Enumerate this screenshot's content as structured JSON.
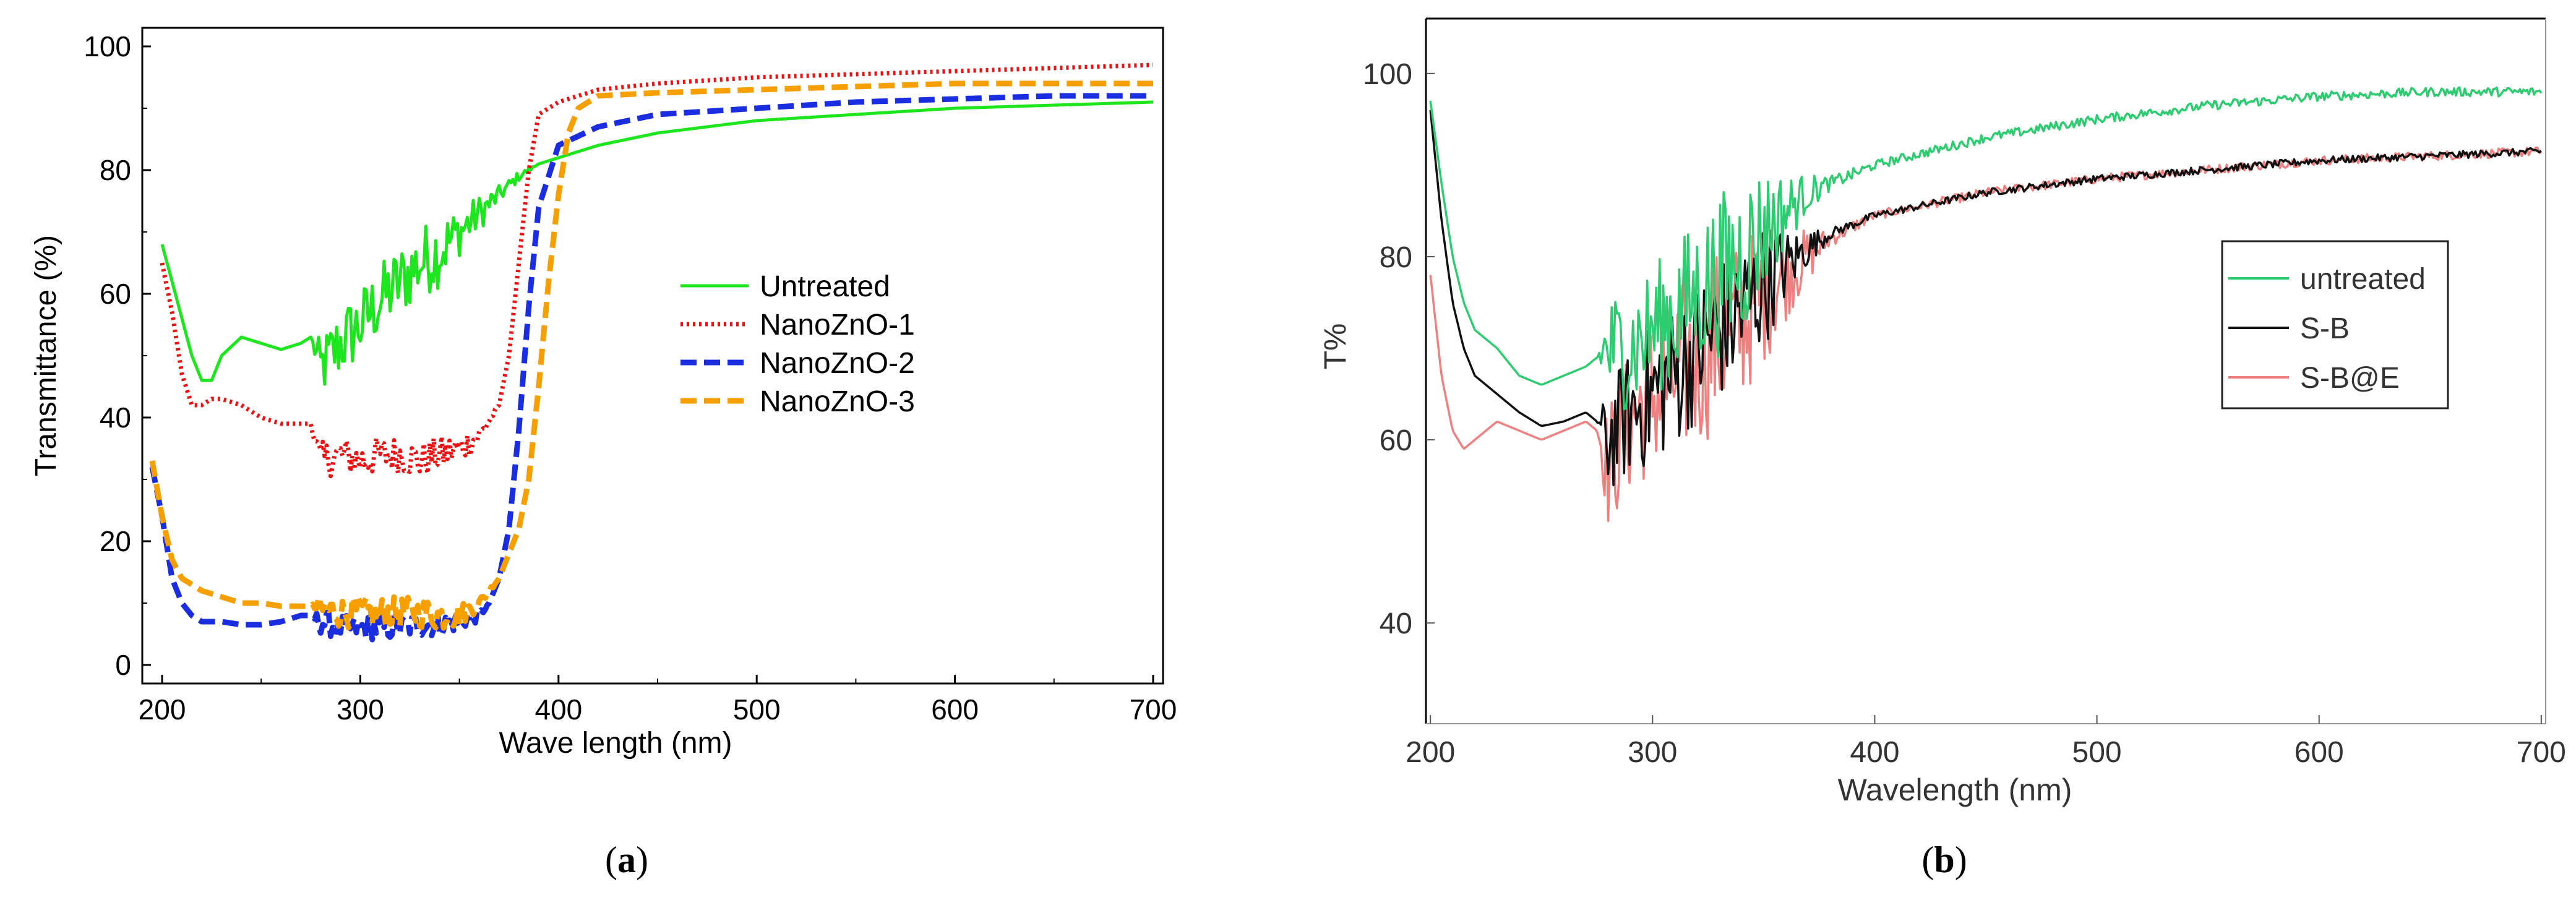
{
  "colors": {
    "untreated_a": "#1ee61e",
    "nano1": "#ee1111",
    "nano2": "#1a2ee0",
    "nano3": "#f5a000",
    "untreated_b": "#2ecc71",
    "sb": "#111111",
    "sbe": "#f08080"
  },
  "panels": {
    "a": {
      "caption_open": "(",
      "caption_letter": "a",
      "caption_close": ")"
    },
    "b": {
      "caption_open": "(",
      "caption_letter": "b",
      "caption_close": ")"
    }
  },
  "chart_data": [
    {
      "id": "a",
      "type": "line",
      "xlabel": "Wave length (nm)",
      "ylabel": "Transmittance (%)",
      "xlim": [
        190,
        705
      ],
      "ylim": [
        -3,
        103
      ],
      "xticks": [
        200,
        300,
        400,
        500,
        600,
        700
      ],
      "yticks": [
        0,
        20,
        40,
        60,
        80,
        100
      ],
      "grid": false,
      "legend_position": "center-right",
      "series": [
        {
          "name": "Untreated",
          "style": "solid",
          "x": [
            200,
            205,
            210,
            215,
            220,
            225,
            230,
            240,
            250,
            260,
            270,
            275,
            280,
            290,
            300,
            310,
            320,
            330,
            340,
            350,
            360,
            370,
            380,
            390,
            400,
            420,
            450,
            500,
            550,
            600,
            650,
            700
          ],
          "y": [
            68,
            62,
            56,
            50,
            46,
            46,
            50,
            53,
            52,
            51,
            52,
            53,
            48,
            52,
            55,
            59,
            62,
            65,
            67,
            70,
            73,
            76,
            79,
            81,
            82,
            84,
            86,
            88,
            89,
            90,
            90.5,
            91
          ],
          "noise": [
            0,
            0,
            0,
            0,
            0,
            0,
            0,
            0,
            0,
            0,
            0,
            0,
            5,
            6,
            6,
            6,
            6,
            6,
            6,
            4,
            3,
            1.5,
            0.8,
            0,
            0,
            0,
            0,
            0,
            0,
            0,
            0,
            0
          ]
        },
        {
          "name": "NanoZnO-1",
          "style": "dotted",
          "x": [
            200,
            205,
            210,
            215,
            220,
            225,
            230,
            240,
            250,
            260,
            270,
            275,
            280,
            290,
            300,
            310,
            320,
            330,
            340,
            350,
            360,
            370,
            375,
            380,
            385,
            390,
            400,
            420,
            450,
            500,
            550,
            600,
            650,
            700
          ],
          "y": [
            65,
            57,
            47,
            42,
            42,
            43,
            43,
            42,
            40,
            39,
            39,
            39,
            33,
            34,
            33,
            34,
            34,
            33,
            34,
            35,
            37,
            42,
            50,
            65,
            80,
            89,
            91,
            93,
            94,
            95,
            95.5,
            96,
            96.5,
            97
          ],
          "noise": [
            0,
            0,
            0,
            0,
            0,
            0,
            0,
            0,
            0,
            0,
            0,
            0,
            3,
            3,
            3,
            3,
            3,
            3,
            3,
            2.5,
            2,
            0,
            0,
            0,
            0,
            0,
            0,
            0,
            0,
            0,
            0,
            0,
            0,
            0
          ]
        },
        {
          "name": "NanoZnO-2",
          "style": "dashed",
          "x": [
            195,
            200,
            205,
            210,
            215,
            220,
            230,
            240,
            250,
            260,
            270,
            275,
            280,
            290,
            300,
            310,
            320,
            330,
            340,
            350,
            360,
            365,
            370,
            375,
            380,
            385,
            390,
            400,
            420,
            450,
            500,
            550,
            600,
            650,
            700
          ],
          "y": [
            32,
            24,
            14,
            10,
            8,
            7,
            7,
            6.5,
            6.5,
            7,
            8,
            8,
            7,
            6,
            6,
            6,
            6,
            6.5,
            6.5,
            7,
            8,
            10,
            14,
            22,
            38,
            58,
            74,
            84,
            87,
            89,
            90,
            91,
            91.5,
            92,
            92
          ],
          "noise": [
            0,
            0,
            0,
            0,
            0,
            0,
            0,
            0,
            0,
            0,
            0,
            0,
            2,
            2,
            2,
            2,
            2,
            2,
            2,
            1.5,
            1,
            0,
            0,
            0,
            0,
            0,
            0,
            0,
            0,
            0,
            0,
            0,
            0,
            0,
            0
          ]
        },
        {
          "name": "NanoZnO-3",
          "style": "dashed",
          "x": [
            195,
            200,
            205,
            210,
            215,
            220,
            230,
            240,
            250,
            260,
            270,
            275,
            280,
            290,
            300,
            310,
            320,
            330,
            340,
            350,
            360,
            370,
            380,
            385,
            390,
            395,
            400,
            405,
            410,
            420,
            450,
            500,
            550,
            600,
            650,
            700
          ],
          "y": [
            33,
            24,
            17,
            14,
            13,
            12,
            11,
            10,
            10,
            9.5,
            9.5,
            9.5,
            9,
            8.5,
            8.5,
            8.5,
            8.5,
            8.5,
            8,
            8,
            10,
            14,
            22,
            30,
            45,
            62,
            76,
            86,
            90,
            92,
            92.5,
            93,
            93.5,
            94,
            94,
            94
          ],
          "noise": [
            0,
            0,
            0,
            0,
            0,
            0,
            0,
            0,
            0,
            0,
            0,
            0,
            2.5,
            2.5,
            2.5,
            2.5,
            2.5,
            2.5,
            2.5,
            2,
            1,
            0,
            0,
            0,
            0,
            0,
            0,
            0,
            0,
            0,
            0,
            0,
            0,
            0,
            0,
            0
          ]
        }
      ]
    },
    {
      "id": "b",
      "type": "line",
      "xlabel": "Wavelength (nm)",
      "ylabel": "T%",
      "xlim": [
        198,
        702
      ],
      "ylim": [
        29,
        106
      ],
      "xticks": [
        200,
        300,
        400,
        500,
        600,
        700
      ],
      "yticks": [
        40,
        60,
        80,
        100
      ],
      "grid": false,
      "legend_position": "right",
      "series": [
        {
          "name": "untreated",
          "style": "solid",
          "x": [
            200,
            205,
            210,
            215,
            220,
            230,
            240,
            250,
            260,
            270,
            275,
            280,
            290,
            300,
            310,
            320,
            330,
            340,
            350,
            360,
            370,
            380,
            400,
            450,
            500,
            550,
            600,
            650,
            700
          ],
          "y": [
            97,
            88,
            80,
            75,
            72,
            70,
            67,
            66,
            67,
            68,
            69,
            70,
            70,
            72,
            74,
            76,
            78,
            80,
            83,
            85,
            87,
            88,
            90,
            93,
            95,
            96.5,
            97.5,
            98,
            98
          ],
          "noise": [
            0,
            0,
            0,
            0,
            0,
            0,
            0,
            0,
            0,
            0,
            0,
            6,
            7,
            7,
            8,
            8,
            9,
            9,
            7,
            4,
            2,
            0.8,
            0.5,
            0.5,
            0.5,
            0.5,
            0.5,
            0.5,
            0.5
          ]
        },
        {
          "name": "S-B",
          "style": "solid",
          "x": [
            200,
            205,
            210,
            215,
            220,
            230,
            240,
            250,
            260,
            270,
            275,
            280,
            290,
            300,
            310,
            320,
            330,
            340,
            350,
            360,
            370,
            380,
            400,
            450,
            500,
            550,
            600,
            650,
            700
          ],
          "y": [
            96,
            84,
            75,
            70,
            67,
            65,
            63,
            61.5,
            62,
            63,
            62,
            60,
            63,
            65,
            67,
            70,
            72,
            74,
            77,
            79,
            81,
            82.5,
            84.5,
            87,
            88.5,
            89.5,
            90.5,
            91,
            91.5
          ],
          "noise": [
            0,
            0,
            0,
            0,
            0,
            0,
            0,
            0,
            0,
            0,
            0,
            6,
            7,
            8,
            8,
            8,
            8,
            8,
            7,
            4,
            2,
            0.6,
            0.4,
            0.4,
            0.4,
            0.4,
            0.4,
            0.4,
            0.4
          ]
        },
        {
          "name": "S-B@E",
          "style": "solid",
          "x": [
            200,
            205,
            210,
            215,
            220,
            230,
            240,
            250,
            260,
            270,
            275,
            280,
            290,
            300,
            310,
            320,
            330,
            340,
            350,
            360,
            370,
            380,
            400,
            450,
            500,
            550,
            600,
            650,
            700
          ],
          "y": [
            78,
            67,
            61,
            59,
            60,
            62,
            61,
            60,
            61,
            62,
            61,
            57,
            62,
            65,
            67,
            69,
            71,
            73,
            76,
            78,
            80,
            82,
            84.5,
            87,
            88.5,
            89.5,
            90.5,
            91,
            91.5
          ],
          "noise": [
            0,
            0,
            0,
            0,
            0,
            0,
            0,
            0,
            0,
            0,
            0,
            7,
            8,
            9,
            10,
            10,
            10,
            9,
            8,
            5,
            3,
            1,
            0.5,
            0.5,
            0.5,
            0.5,
            0.5,
            0.5,
            0.5
          ]
        }
      ]
    }
  ]
}
